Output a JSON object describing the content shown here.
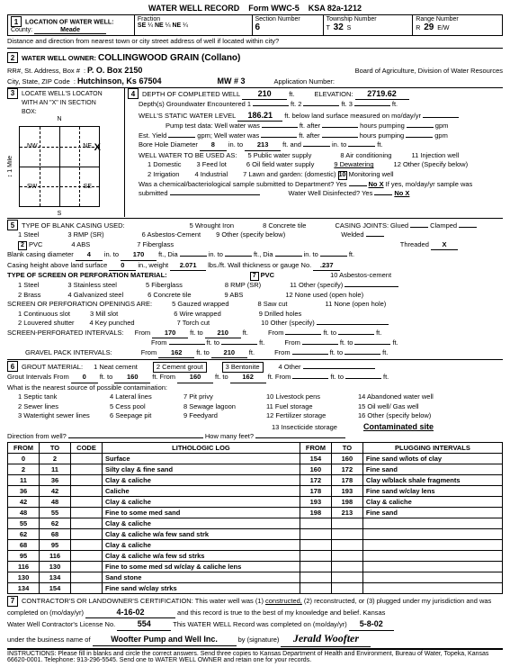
{
  "header": {
    "title": "WATER WELL RECORD",
    "form": "Form WWC-5",
    "ksa": "KSA 82a-1212"
  },
  "loc": {
    "county_label": "County:",
    "county": "Meade",
    "fraction": "Fraction",
    "q1a": "SE",
    "q1b": "¼",
    "q2a": "NE",
    "q2b": "¼",
    "q3a": "NE",
    "q3b": "¼",
    "section_label": "Section Number",
    "section": "6",
    "township_label": "Township Number",
    "township": "32",
    "township_s": "S",
    "range_label": "Range Number",
    "range": "29",
    "range_ew": "E/W",
    "distance": "Distance and direction from nearest town or city street address of well if located within city?"
  },
  "owner": {
    "title": "WATER WELL OWNER:",
    "name": "COLLINGWOOD GRAIN (Collano)",
    "addr_label": "RR#, St. Address, Box #",
    "addr": "P. O. Box 2150",
    "city_label": "City, State, ZIP Code",
    "city": "Hutchinson, Ks  67504",
    "board": "Board of Agriculture, Division of Water Resources",
    "mw": "MW # 3",
    "app_label": "Application Number:"
  },
  "locate": {
    "title": "LOCATE WELL'S LOCATON WITH AN \"X\" IN SECTION BOX:",
    "n": "N",
    "s": "S",
    "nw": "NW",
    "ne": "NE",
    "sw": "SW",
    "se": "SE",
    "x": "X",
    "mile": "1 Mile"
  },
  "depth": {
    "title": "DEPTH OF COMPLETED WELL",
    "depth": "210",
    "ft": "ft.",
    "elev_label": "ELEVATION:",
    "elev": "2719.62",
    "enc": "Depth(s) Groundwater Encountered",
    "e1l": "1",
    "e2l": "2",
    "e3l": "3",
    "static_label": "WELL'S STATIC WATER LEVEL",
    "static": "186.21",
    "static_after": "ft. below land surface measured on mo/day/yr",
    "pump_test": "Pump test data:",
    "ww_was": "Well water was",
    "ft_after": "ft. after",
    "hrs_pump": "hours pumping",
    "gpm": "gpm",
    "est_yield": "Est. Yield",
    "gpm2": "gpm;",
    "bore": "Bore Hole Diameter",
    "bore_d": "8",
    "in_to": "in. to",
    "bore_to": "213",
    "ft_and": "ft. and",
    "use": "WELL WATER TO BE USED AS:",
    "u1": "1  Domestic",
    "u2": "2  Irrigation",
    "u3": "3  Feed lot",
    "u4": "4  Industrial",
    "u5": "5  Public water supply",
    "u6": "6  Oil field water supply",
    "u7": "7  Lawn and garden: (domestic)",
    "u8": "8  Air conditioning",
    "u9": "9  Dewatering",
    "u10": "Monitoring well",
    "u11": "11  Injection well",
    "u12": "12  Other (Specify below)",
    "chem": "Was a chemical/bacteriological sample submitted to Department?  Yes",
    "nox": "No X",
    "if_yes": "If yes, mo/day/yr sample was",
    "submitted": "submitted",
    "disinf": "Water Well Disinfected?  Yes",
    "nox2": "No X"
  },
  "casing": {
    "title": "TYPE OF BLANK CASING USED:",
    "c1": "1  Steel",
    "c2": "PVC",
    "c3": "3  RMP (SR)",
    "c4": "4  ABS",
    "c5": "5  Wrought Iron",
    "c6": "6  Asbestos-Cement",
    "c7": "7  Fiberglass",
    "c8": "8  Concrete tile",
    "c9": "9  Other (specify below)",
    "joints": "CASING JOINTS:",
    "glued": "Glued",
    "clamped": "Clamped",
    "welded": "Welded",
    "threaded": "Threaded",
    "x": "X",
    "blank_dia": "Blank casing diameter",
    "bd": "4",
    "into": "in. to",
    "bd_to": "170",
    "ft_comma": "ft.,",
    "dia": "Dia",
    "height": "Casing height above land surface",
    "h": "0",
    "in_wt": "in., weight",
    "wt": "2.071",
    "lbs": "lbs./ft.",
    "wall": "Wall thickness or gauge No.",
    "wall_v": ".237"
  },
  "screen": {
    "title": "TYPE OF SCREEN OR PERFORATION MATERIAL:",
    "s1": "1  Steel",
    "s2": "2  Brass",
    "s3": "3  Stainless steel",
    "s4": "4  Galvanized steel",
    "s5": "5  Fiberglass",
    "s6": "6  Concrete tile",
    "s7": "PVC",
    "s8": "8  RMP (SR)",
    "s9": "9  ABS",
    "s10": "10  Asbestos-cement",
    "s11": "11  Other (specify)",
    "s12": "12  None used (open hole)",
    "open_title": "SCREEN OR PERFORATION OPENINGS ARE:",
    "o1": "1  Continuous slot",
    "o2": "2  Louvered shutter",
    "o3": "3  Mill slot",
    "o4": "4  Key punched",
    "o5": "5  Gauzed wrapped",
    "o6": "6  Wire wrapped",
    "o7": "7  Torch cut",
    "o8": "8  Saw cut",
    "o9": "9  Drilled holes",
    "o10": "10  Other (specify)",
    "o11": "11  None (open hole)",
    "perf": "SCREEN-PERFORATED INTERVALS:",
    "from": "From",
    "to": "ft. to",
    "ft": "ft.",
    "p1f": "170",
    "p1t": "210",
    "gravel": "GRAVEL PACK INTERVALS:",
    "g1f": "162",
    "g1t": "210"
  },
  "grout": {
    "title": "GROUT MATERIAL:",
    "g1": "1  Neat cement",
    "g2": "2  Cement grout",
    "g3": "3  Bentonite",
    "g4": "4  Other",
    "intervals": "Grout Intervals",
    "from": "From",
    "gf1": "0",
    "to": "ft. to",
    "gt1": "160",
    "gf2": "160",
    "gt2": "162",
    "contam": "What is the nearest source of possible contamination:",
    "c1": "1  Septic tank",
    "c2": "2  Sewer lines",
    "c3": "3  Watertight sewer lines",
    "c4": "4  Lateral lines",
    "c5": "5  Cess pool",
    "c6": "6  Seepage pit",
    "c7": "7  Pit privy",
    "c8": "8  Sewage lagoon",
    "c9": "9  Feedyard",
    "c10": "10  Livestock pens",
    "c11": "11  Fuel storage",
    "c12": "12  Fertilizer storage",
    "c13": "13  Insecticide storage",
    "c14": "14  Abandoned water well",
    "c15": "15  Oil well/ Gas well",
    "c16": "16  Other (specify below)",
    "contam_site": "Contaminated site",
    "dir": "Direction from well?",
    "howmany": "How many feet?"
  },
  "log": {
    "h_from": "FROM",
    "h_to": "TO",
    "h_code": "CODE",
    "h_lith": "LITHOLOGIC LOG",
    "h_from2": "FROM",
    "h_to2": "TO",
    "h_plug": "PLUGGING INTERVALS",
    "rows": [
      {
        "f": "0",
        "t": "2",
        "l": "Surface",
        "f2": "154",
        "t2": "160",
        "p": "Fine sand w/lots of clay"
      },
      {
        "f": "2",
        "t": "11",
        "l": "Silty clay & fine sand",
        "f2": "160",
        "t2": "172",
        "p": "Fine sand"
      },
      {
        "f": "11",
        "t": "36",
        "l": "Clay & caliche",
        "f2": "172",
        "t2": "178",
        "p": "Clay w/black shale fragments"
      },
      {
        "f": "36",
        "t": "42",
        "l": "Caliche",
        "f2": "178",
        "t2": "193",
        "p": "Fine sand w/clay lens"
      },
      {
        "f": "42",
        "t": "48",
        "l": "Clay & caliche",
        "f2": "193",
        "t2": "198",
        "p": "Clay & caliche"
      },
      {
        "f": "48",
        "t": "55",
        "l": "Fine to some med sand",
        "f2": "198",
        "t2": "213",
        "p": "Fine sand"
      },
      {
        "f": "55",
        "t": "62",
        "l": "Clay & caliche",
        "f2": "",
        "t2": "",
        "p": ""
      },
      {
        "f": "62",
        "t": "68",
        "l": "Clay & caliche w/a few sand strk",
        "f2": "",
        "t2": "",
        "p": ""
      },
      {
        "f": "68",
        "t": "95",
        "l": "Clay & caliche",
        "f2": "",
        "t2": "",
        "p": ""
      },
      {
        "f": "95",
        "t": "116",
        "l": "Clay & caliche w/a few sd strks",
        "f2": "",
        "t2": "",
        "p": ""
      },
      {
        "f": "116",
        "t": "130",
        "l": "Fine to some med sd w/clay & caliche lens",
        "f2": "",
        "t2": "",
        "p": ""
      },
      {
        "f": "130",
        "t": "134",
        "l": "Sand stone",
        "f2": "",
        "t2": "",
        "p": ""
      },
      {
        "f": "134",
        "t": "154",
        "l": "Fine sand w/clay strks",
        "f2": "",
        "t2": "",
        "p": ""
      }
    ]
  },
  "cert": {
    "text1": "CONTRACTOR'S OR LANDOWNER'S CERTIFICATION:  This water well was (1)",
    "constructed": "constructed,",
    "text2": "(2) reconstructed, or (3) plugged under my jurisdiction and was",
    "completed": "completed on (mo/day/yr)",
    "date": "4-16-02",
    "text3": "and this record is true to the best of my knowledge and belief.  Kansas",
    "lic": "Water Well Contractor's License No.",
    "lic_no": "554",
    "text4": "This WATER WELL Record was completed on (mo/day/yr)",
    "date2": "5-8-02",
    "under": "under the business name of",
    "biz": "Woofter Pump and Well Inc.",
    "by": "by (signature)",
    "sig": "Jerald Woofter"
  },
  "instr": "INSTRUCTIONS:  Please fill in blanks and circle the correct answers.  Send three copies to Kansas Department of Health and Environment, Bureau of Water, Topeka, Kansas 66620-0001.  Telephone: 913-296-5545.  Send one to WATER WELL OWNER and retain one for your records."
}
